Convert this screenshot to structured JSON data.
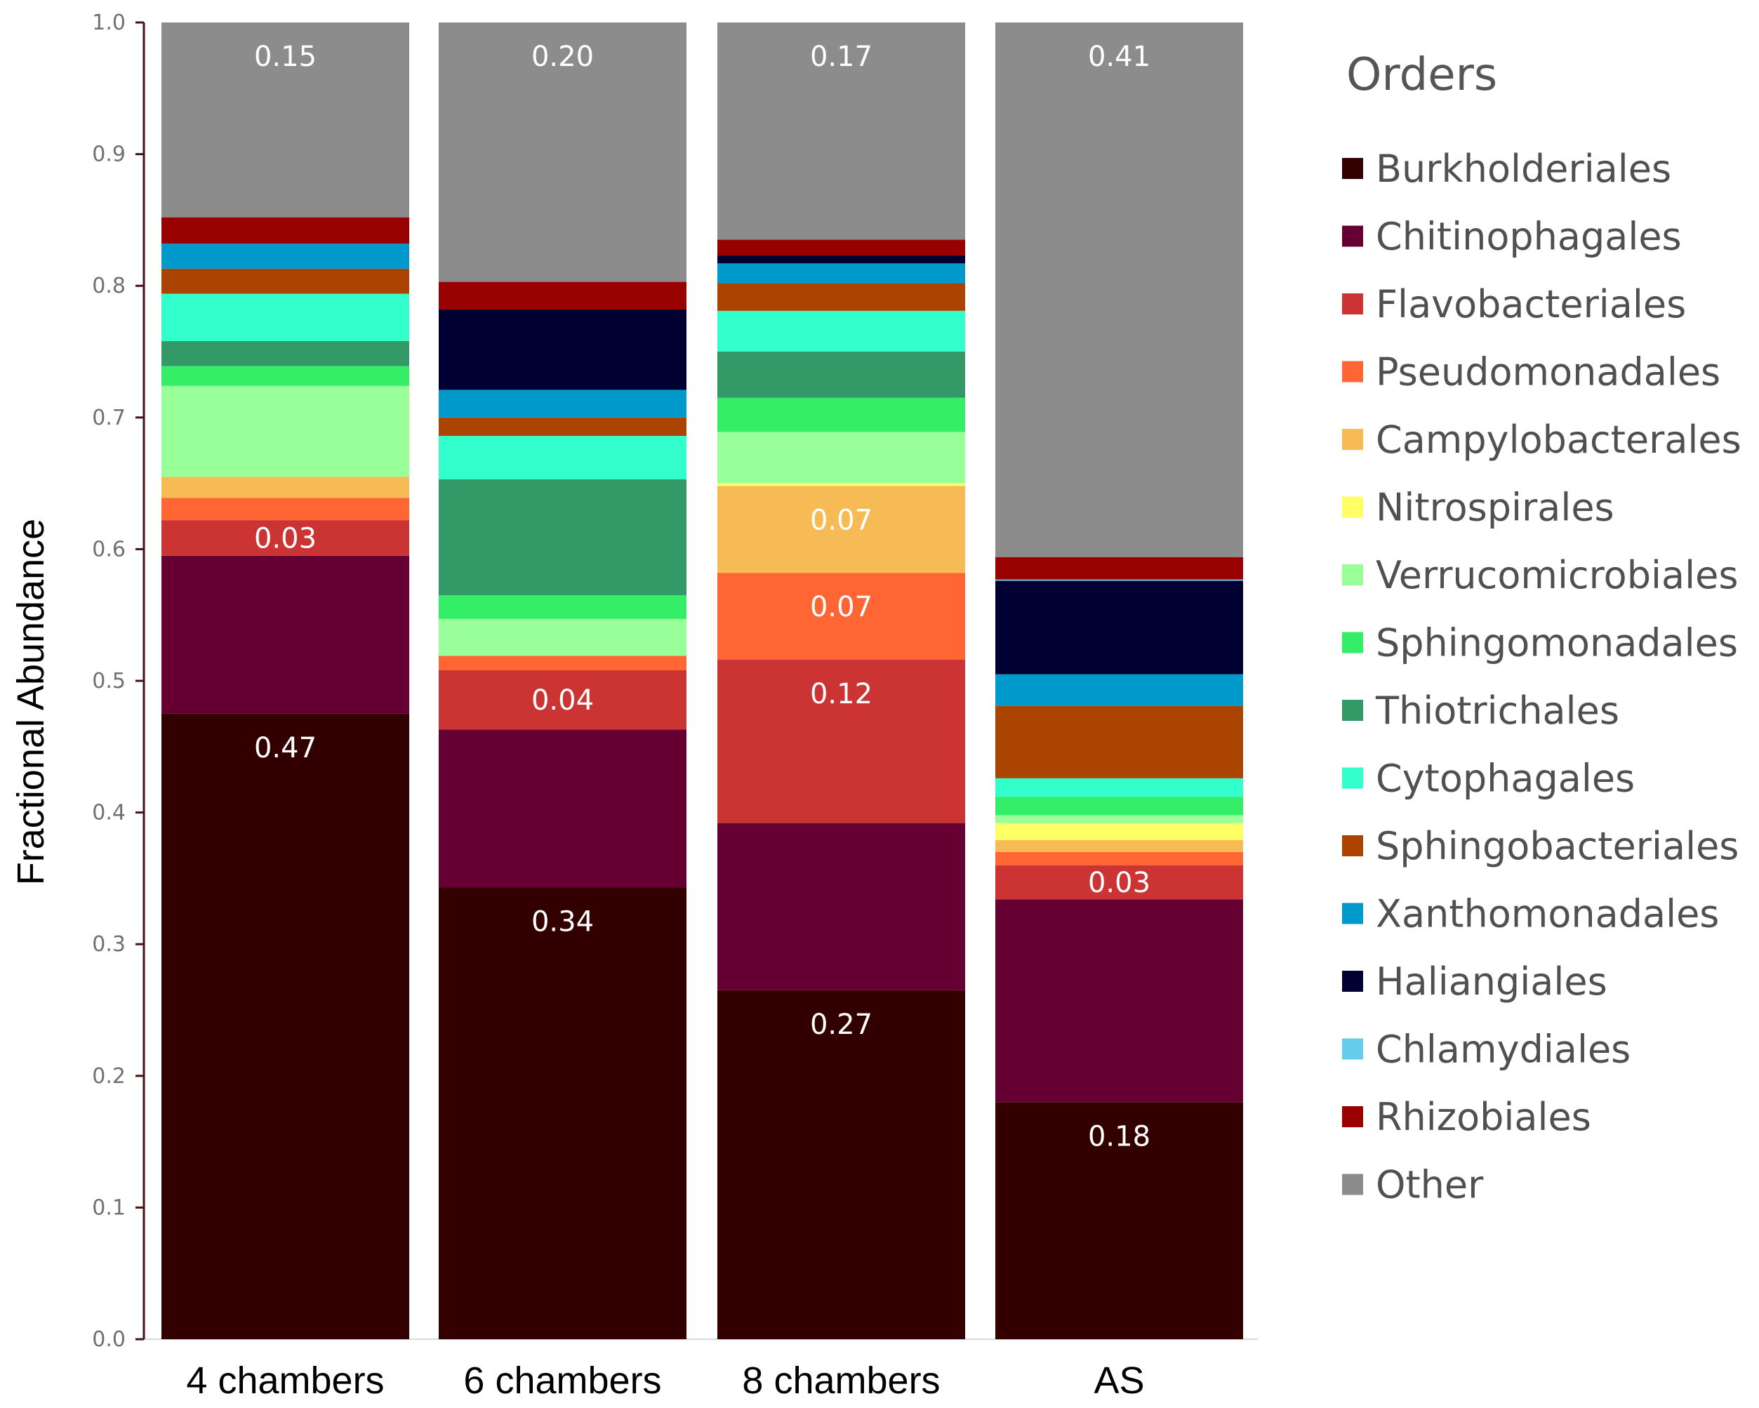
{
  "chart_data": {
    "type": "bar",
    "stacked": true,
    "ylabel": "Fractional Abundance",
    "ylim": [
      0,
      1.0
    ],
    "yticks": [
      "0.0",
      "0.1",
      "0.2",
      "0.3",
      "0.4",
      "0.5",
      "0.6",
      "0.7",
      "0.8",
      "0.9",
      "1.0"
    ],
    "categories": [
      "4 chambers",
      "6 chambers",
      "8 chambers",
      "AS"
    ],
    "legend": {
      "title": "Orders",
      "position": "right"
    },
    "series": [
      {
        "name": "Burkholderiales",
        "color": "#330000",
        "values": [
          0.475,
          0.343,
          0.265,
          0.18
        ]
      },
      {
        "name": "Chitinophagales",
        "color": "#660033",
        "values": [
          0.12,
          0.12,
          0.127,
          0.154
        ]
      },
      {
        "name": "Flavobacteriales",
        "color": "#cc3333",
        "values": [
          0.027,
          0.045,
          0.124,
          0.026
        ]
      },
      {
        "name": "Pseudomonadales",
        "color": "#ff6633",
        "values": [
          0.017,
          0.011,
          0.066,
          0.01
        ]
      },
      {
        "name": "Campylobacterales",
        "color": "#f6bb55",
        "values": [
          0.016,
          0.0,
          0.066,
          0.009
        ]
      },
      {
        "name": "Nitrospirales",
        "color": "#ffff66",
        "values": [
          0.0,
          0.0,
          0.002,
          0.013
        ]
      },
      {
        "name": "Verrucomicrobiales",
        "color": "#99ff99",
        "values": [
          0.069,
          0.028,
          0.039,
          0.006
        ]
      },
      {
        "name": "Sphingomonadales",
        "color": "#33ee66",
        "values": [
          0.015,
          0.018,
          0.026,
          0.014
        ]
      },
      {
        "name": "Thiotrichales",
        "color": "#339966",
        "values": [
          0.019,
          0.088,
          0.035,
          0.0
        ]
      },
      {
        "name": "Cytophagales",
        "color": "#33ffcc",
        "values": [
          0.036,
          0.033,
          0.031,
          0.014
        ]
      },
      {
        "name": "Sphingobacteriales",
        "color": "#aa4400",
        "values": [
          0.019,
          0.014,
          0.021,
          0.055
        ]
      },
      {
        "name": "Xanthomonadales",
        "color": "#0099cc",
        "values": [
          0.019,
          0.021,
          0.015,
          0.024
        ]
      },
      {
        "name": "Haliangiales",
        "color": "#000033",
        "values": [
          0.0,
          0.061,
          0.006,
          0.071
        ]
      },
      {
        "name": "Chlamydiales",
        "color": "#66ccee",
        "values": [
          0.0,
          0.0,
          0.0,
          0.001
        ]
      },
      {
        "name": "Rhizobiales",
        "color": "#990000",
        "values": [
          0.02,
          0.021,
          0.012,
          0.017
        ]
      },
      {
        "name": "Other",
        "color": "#8c8c8c",
        "values": [
          0.148,
          0.197,
          0.165,
          0.406
        ]
      }
    ],
    "data_labels": [
      {
        "category": "4 chambers",
        "series": "Burkholderiales",
        "text": "0.47"
      },
      {
        "category": "4 chambers",
        "series": "Flavobacteriales",
        "text": "0.03"
      },
      {
        "category": "4 chambers",
        "series": "Other",
        "text": "0.15"
      },
      {
        "category": "6 chambers",
        "series": "Burkholderiales",
        "text": "0.34"
      },
      {
        "category": "6 chambers",
        "series": "Flavobacteriales",
        "text": "0.04"
      },
      {
        "category": "6 chambers",
        "series": "Other",
        "text": "0.20"
      },
      {
        "category": "8 chambers",
        "series": "Burkholderiales",
        "text": "0.27"
      },
      {
        "category": "8 chambers",
        "series": "Flavobacteriales",
        "text": "0.12"
      },
      {
        "category": "8 chambers",
        "series": "Pseudomonadales",
        "text": "0.07"
      },
      {
        "category": "8 chambers",
        "series": "Campylobacterales",
        "text": "0.07"
      },
      {
        "category": "8 chambers",
        "series": "Other",
        "text": "0.17"
      },
      {
        "category": "AS",
        "series": "Burkholderiales",
        "text": "0.18"
      },
      {
        "category": "AS",
        "series": "Flavobacteriales",
        "text": "0.03"
      },
      {
        "category": "AS",
        "series": "Other",
        "text": "0.41"
      }
    ]
  }
}
